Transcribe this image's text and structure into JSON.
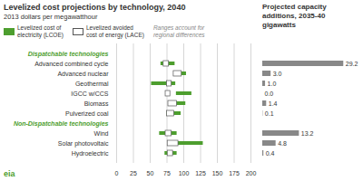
{
  "chart_data": [
    {
      "type": "range_bar",
      "title": "Levelized cost projections by technology, 2040",
      "subtitle": "2013 dollars per megawatthour",
      "orientation": "horizontal",
      "categories": [
        "Advanced combined cycle",
        "Advanced nuclear",
        "Geothermal",
        "IGCC w/CCS",
        "Biomass",
        "Pulverized coal",
        "Wind",
        "Solar photovoltaic",
        "Hydroelectric"
      ],
      "groups": [
        "Dispatchable technologies",
        "Dispatchable technologies",
        "Dispatchable technologies",
        "Dispatchable technologies",
        "Dispatchable technologies",
        "Dispatchable technologies",
        "Non-Dispatchable technologies",
        "Non-Dispatchable technologies",
        "Non-Dispatchable technologies"
      ],
      "series": [
        {
          "name": "Levelized cost of\nelectricity (LCOE)",
          "color": "#4d9e2e",
          "min": [
            66,
            87,
            52,
            89,
            84,
            75,
            64,
            79,
            72
          ],
          "max": [
            87,
            104,
            88,
            112,
            103,
            96,
            90,
            129,
            90
          ]
        },
        {
          "name": "Levelized avoided\ncost of energy (LACE)",
          "color": "#ffffff",
          "min": [
            70,
            85,
            75,
            73,
            77,
            75,
            73,
            76,
            76
          ],
          "max": [
            78,
            97,
            82,
            80,
            90,
            86,
            82,
            92,
            84
          ]
        }
      ],
      "annotations": [
        "Ranges account for\nregional differences",
        "eia"
      ],
      "xlim": [
        0,
        200
      ],
      "xticks": [
        0,
        25,
        50,
        75,
        100,
        125,
        150,
        175,
        200
      ],
      "grid": true
    },
    {
      "type": "bar",
      "title": "Projected capacity\nadditions, 2035-40",
      "subtitle": "gigawatts",
      "orientation": "horizontal",
      "categories": [
        "Advanced combined cycle",
        "Advanced nuclear",
        "Geothermal",
        "IGCC w/CCS",
        "Biomass",
        "Pulverized coal",
        "Wind",
        "Solar photovoltaic",
        "Hydroelectric"
      ],
      "values": [
        29.2,
        3.0,
        1.0,
        0.0,
        1.4,
        0.1,
        13.2,
        4.8,
        0.4
      ],
      "value_labels": [
        "29.2",
        "3.0",
        "1.0",
        "0.0",
        "1.4",
        "0.1",
        "13.2",
        "4.8",
        "0.4"
      ],
      "color": "#888888",
      "xlim": [
        0,
        35
      ],
      "data_labels": true,
      "tick_labels": false
    }
  ]
}
